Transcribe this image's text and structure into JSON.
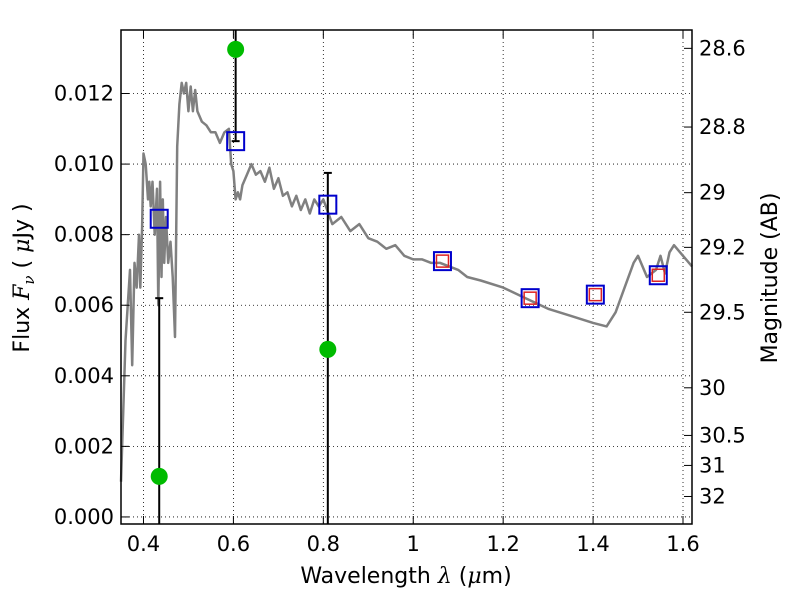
{
  "chart_data": {
    "type": "scatter",
    "xlabel_text": "Wavelength",
    "xlabel_math": "λ",
    "xlabel_unit_open": " (",
    "xlabel_unit_math": "μ",
    "xlabel_unit_close": "m)",
    "ylabel_text": "Flux",
    "ylabel_math": "F",
    "ylabel_math_sub": "ν",
    "ylabel_unit_open": "(",
    "ylabel_unit_math": "μ",
    "ylabel_unit_close": "Jy )",
    "y2label": "Magnitude (AB)",
    "xlim": [
      0.35,
      1.62
    ],
    "ylim": [
      -0.0002,
      0.0138
    ],
    "grid": true,
    "x_ticks": [
      0.4,
      0.6,
      0.8,
      1.0,
      1.2,
      1.4,
      1.6
    ],
    "x_tick_labels": [
      "0.4",
      "0.6",
      "0.8",
      "1",
      "1.2",
      "1.4",
      "1.6"
    ],
    "y_ticks": [
      0.0,
      0.002,
      0.004,
      0.006,
      0.008,
      0.01,
      0.012
    ],
    "y_tick_labels": [
      "0.000",
      "0.002",
      "0.004",
      "0.006",
      "0.008",
      "0.010",
      "0.012"
    ],
    "mag_ticks": [
      {
        "label": "28.6",
        "flux": 0.01328
      },
      {
        "label": "28.8",
        "flux": 0.01105
      },
      {
        "label": "29",
        "flux": 0.00919
      },
      {
        "label": "29.2",
        "flux": 0.00764
      },
      {
        "label": "29.5",
        "flux": 0.0058
      },
      {
        "label": "30",
        "flux": 0.00366
      },
      {
        "label": "30.5",
        "flux": 0.00231
      },
      {
        "label": "31",
        "flux": 0.00146
      },
      {
        "label": "32",
        "flux": 0.00058
      }
    ],
    "model_spectrum": {
      "color": "#808080",
      "x": [
        0.35,
        0.36,
        0.37,
        0.375,
        0.38,
        0.385,
        0.39,
        0.393,
        0.397,
        0.4,
        0.405,
        0.41,
        0.413,
        0.416,
        0.42,
        0.425,
        0.43,
        0.433,
        0.437,
        0.44,
        0.443,
        0.446,
        0.45,
        0.455,
        0.46,
        0.465,
        0.47,
        0.475,
        0.48,
        0.485,
        0.49,
        0.495,
        0.5,
        0.505,
        0.51,
        0.515,
        0.52,
        0.53,
        0.54,
        0.55,
        0.56,
        0.57,
        0.58,
        0.59,
        0.595,
        0.6,
        0.605,
        0.61,
        0.615,
        0.62,
        0.63,
        0.64,
        0.65,
        0.66,
        0.67,
        0.68,
        0.69,
        0.7,
        0.71,
        0.72,
        0.73,
        0.74,
        0.75,
        0.76,
        0.77,
        0.78,
        0.79,
        0.8,
        0.82,
        0.84,
        0.86,
        0.88,
        0.9,
        0.92,
        0.94,
        0.96,
        0.98,
        1.0,
        1.02,
        1.04,
        1.06,
        1.08,
        1.1,
        1.12,
        1.15,
        1.2,
        1.25,
        1.3,
        1.35,
        1.4,
        1.43,
        1.45,
        1.47,
        1.49,
        1.5,
        1.52,
        1.54,
        1.55,
        1.56,
        1.57,
        1.58,
        1.6,
        1.62
      ],
      "y": [
        0.001,
        0.005,
        0.007,
        0.0043,
        0.0072,
        0.0065,
        0.008,
        0.0065,
        0.0082,
        0.0103,
        0.01,
        0.009,
        0.0095,
        0.0088,
        0.0095,
        0.008,
        0.0093,
        0.006,
        0.0095,
        0.0068,
        0.009,
        0.0072,
        0.0085,
        0.0072,
        0.0078,
        0.0068,
        0.0051,
        0.0105,
        0.0117,
        0.0123,
        0.012,
        0.0123,
        0.0115,
        0.0122,
        0.0115,
        0.0121,
        0.0115,
        0.0112,
        0.0111,
        0.0109,
        0.0109,
        0.0106,
        0.0109,
        0.011,
        0.01,
        0.0098,
        0.009,
        0.0092,
        0.009,
        0.0094,
        0.0097,
        0.01,
        0.0097,
        0.0098,
        0.0095,
        0.0099,
        0.0093,
        0.0096,
        0.0091,
        0.0092,
        0.0088,
        0.0091,
        0.0087,
        0.009,
        0.0086,
        0.009,
        0.0088,
        0.009,
        0.0083,
        0.0085,
        0.0081,
        0.0083,
        0.0079,
        0.0078,
        0.0076,
        0.0077,
        0.0074,
        0.0073,
        0.0073,
        0.0072,
        0.0072,
        0.0071,
        0.007,
        0.0068,
        0.0067,
        0.0065,
        0.0062,
        0.0059,
        0.0057,
        0.0055,
        0.0054,
        0.0058,
        0.0065,
        0.0072,
        0.0074,
        0.0068,
        0.007,
        0.0074,
        0.0069,
        0.0075,
        0.0077,
        0.0074,
        0.0071
      ]
    },
    "observed": {
      "color": "#00bb00",
      "x": [
        0.435,
        0.605,
        0.81
      ],
      "y": [
        0.00115,
        0.01325,
        0.00475
      ]
    },
    "errorbars": [
      {
        "x": 0.435,
        "lo": -0.0002,
        "hi": 0.0062
      },
      {
        "x": 0.605,
        "lo": 0.01065,
        "hi": 0.0138
      },
      {
        "x": 0.81,
        "lo": -0.0002,
        "hi": 0.00975
      }
    ],
    "model_photometry": {
      "color": "#0000cc",
      "x": [
        0.435,
        0.605,
        0.81,
        1.065,
        1.26,
        1.405,
        1.545
      ],
      "y": [
        0.00845,
        0.01065,
        0.00885,
        0.00725,
        0.0062,
        0.0063,
        0.00685
      ]
    },
    "nir_photometry": {
      "color": "#dd2222",
      "x": [
        1.065,
        1.26,
        1.405,
        1.545
      ],
      "y": [
        0.00725,
        0.0062,
        0.0063,
        0.00685
      ]
    }
  }
}
